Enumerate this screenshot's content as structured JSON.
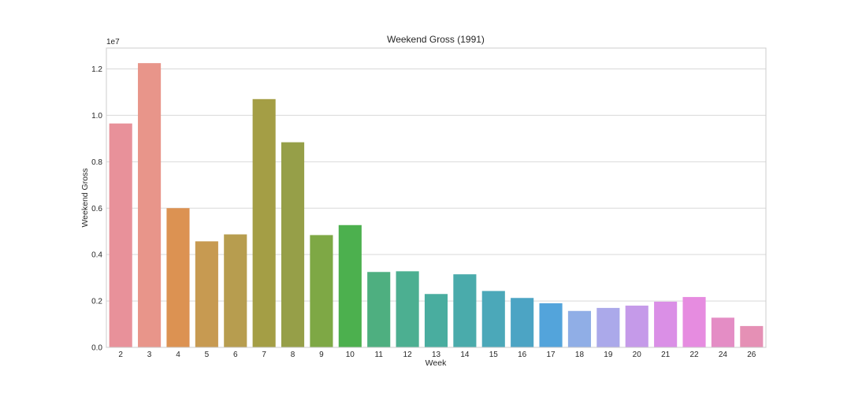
{
  "chart_data": {
    "type": "bar",
    "title": "Weekend Gross (1991)",
    "xlabel": "Week",
    "ylabel": "Weekend Gross",
    "y_offset_label": "1e7",
    "ylim": [
      0,
      1.29
    ],
    "yticks": [
      "0.0",
      "0.2",
      "0.4",
      "0.6",
      "0.8",
      "1.0",
      "1.2"
    ],
    "grid": true,
    "categories": [
      "2",
      "3",
      "4",
      "5",
      "6",
      "7",
      "8",
      "9",
      "10",
      "11",
      "12",
      "13",
      "14",
      "15",
      "16",
      "17",
      "18",
      "19",
      "20",
      "21",
      "22",
      "24",
      "26"
    ],
    "values": [
      0.965,
      1.225,
      0.6,
      0.457,
      0.487,
      1.07,
      0.884,
      0.484,
      0.527,
      0.325,
      0.328,
      0.23,
      0.315,
      0.243,
      0.213,
      0.19,
      0.157,
      0.17,
      0.18,
      0.197,
      0.217,
      0.128,
      0.092
    ],
    "colors": [
      "#e8919a",
      "#e8958a",
      "#dc9252",
      "#c79a51",
      "#b79d4f",
      "#a49e45",
      "#969f48",
      "#7ea845",
      "#4cb04e",
      "#4eaf80",
      "#4caf91",
      "#49ad9f",
      "#4aabab",
      "#4ba8b9",
      "#4ca4c4",
      "#53a4db",
      "#90aee6",
      "#aba9ea",
      "#c59ae9",
      "#da8fe6",
      "#e68ce0",
      "#e48dc5",
      "#e590b5"
    ]
  }
}
